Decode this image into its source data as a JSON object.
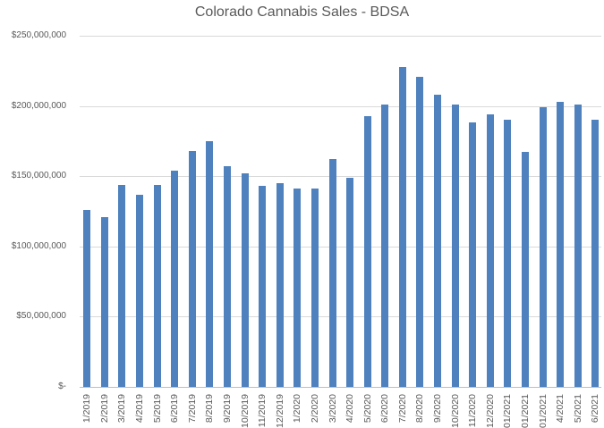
{
  "chart_data": {
    "type": "bar",
    "title": "Colorado Cannabis Sales - BDSA",
    "xlabel": "",
    "ylabel": "",
    "categories": [
      "1/2019",
      "2/2019",
      "3/2019",
      "4/2019",
      "5/2019",
      "6/2019",
      "7/2019",
      "8/2019",
      "9/2019",
      "10/2019",
      "11/2019",
      "12/2019",
      "1/2020",
      "2/2020",
      "3/2020",
      "4/2020",
      "5/2020",
      "6/2020",
      "7/2020",
      "8/2020",
      "9/2020",
      "10/2020",
      "11/2020",
      "12/2020",
      "1/01/2021",
      "2/01/2021",
      "3/01/2021",
      "4/2021",
      "5/2021",
      "6/2021"
    ],
    "values": [
      126000000,
      121000000,
      144000000,
      137000000,
      144000000,
      154000000,
      168000000,
      175000000,
      157000000,
      152000000,
      143000000,
      145000000,
      141000000,
      141000000,
      162000000,
      149000000,
      193000000,
      201000000,
      228000000,
      221000000,
      208000000,
      201000000,
      188000000,
      194000000,
      190000000,
      167000000,
      199000000,
      203000000,
      201000000,
      190000000
    ],
    "ylim": [
      0,
      250000000
    ],
    "y_tick_interval": 50000000,
    "y_tick_labels": [
      "$250,000,000",
      "$200,000,000",
      "$150,000,000",
      "$100,000,000",
      "$50,000,000",
      "$-"
    ],
    "grid": "horizontal",
    "legend": "none",
    "x_label_rotation_deg": -90,
    "colors": {
      "bar": "#4e81bd",
      "gridline": "#d9d9d9",
      "axis_line": "#bfbfbf",
      "text": "#595959",
      "background": "#ffffff"
    }
  }
}
